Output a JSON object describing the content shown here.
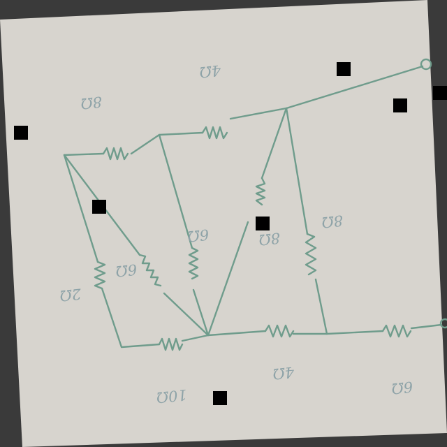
{
  "image": {
    "description_free": true
  },
  "paper": {
    "color": "#d7d4ce",
    "ink": "#6f9c8c",
    "label_ink": "#8ea3a8",
    "background": "#3a3a3a"
  },
  "labels": {
    "top_left": "8Ω",
    "top": "4Ω",
    "mid_left_branch": "6Ω",
    "diagonal": "6Ω",
    "left": "2Ω",
    "center": "8Ω",
    "right_vertical": "8Ω",
    "bottom_left": "10Ω",
    "bottom_mid": "4Ω",
    "bottom_right": "6Ω"
  },
  "markers": [
    "mask-1",
    "mask-2",
    "mask-3",
    "mask-4",
    "mask-5",
    "mask-6",
    "mask-7",
    "mask-8"
  ]
}
